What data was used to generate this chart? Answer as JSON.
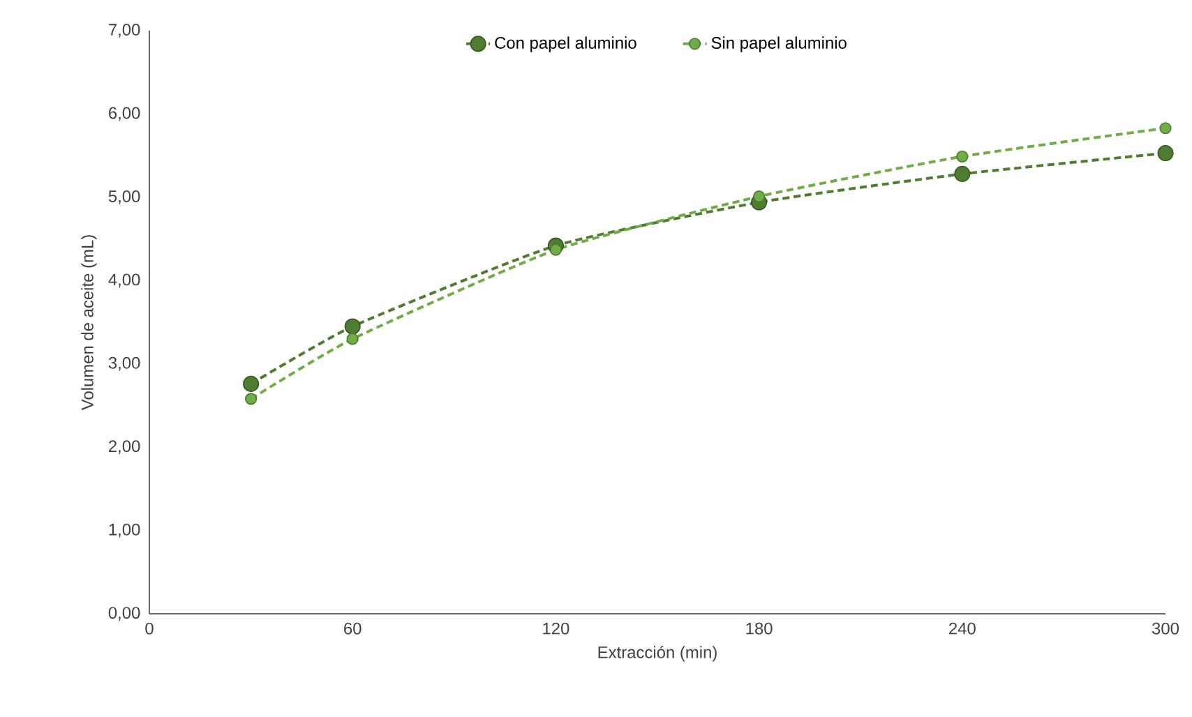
{
  "chart_data": {
    "type": "line",
    "xlabel": "Extracción (min)",
    "ylabel": "Volumen de aceite (mL)",
    "series": [
      {
        "name": "Con papel aluminio",
        "color": "#4e7d31",
        "x": [
          30,
          60,
          120,
          180,
          240,
          300
        ],
        "values": [
          2.76,
          3.45,
          4.42,
          4.94,
          5.28,
          5.53
        ]
      },
      {
        "name": "Sin papel aluminio",
        "color": "#70ad47",
        "x": [
          30,
          60,
          120,
          180,
          240,
          300
        ],
        "values": [
          2.58,
          3.3,
          4.37,
          5.01,
          5.49,
          5.83
        ]
      }
    ],
    "xlim": [
      0,
      300
    ],
    "xticks": [
      0,
      60,
      120,
      180,
      240,
      300
    ],
    "ylim": [
      0,
      7
    ],
    "yticks": [
      {
        "value": 0,
        "label": "0,00"
      },
      {
        "value": 1,
        "label": "1,00"
      },
      {
        "value": 2,
        "label": "2,00"
      },
      {
        "value": 3,
        "label": "3,00"
      },
      {
        "value": 4,
        "label": "4,00"
      },
      {
        "value": 5,
        "label": "5,00"
      },
      {
        "value": 6,
        "label": "6,00"
      },
      {
        "value": 7,
        "label": "7,00"
      }
    ],
    "grid": false,
    "legend": "top",
    "marker": "circle",
    "line_style": "dashed"
  }
}
